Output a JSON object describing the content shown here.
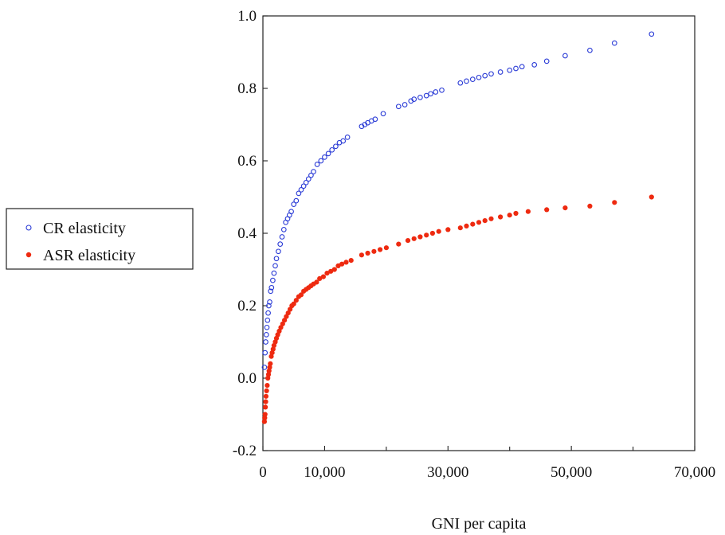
{
  "chart_data": {
    "type": "scatter",
    "title": "",
    "xlabel": "GNI per capita",
    "ylabel": "",
    "xlim": [
      0,
      70000
    ],
    "ylim": [
      -0.2,
      1.0
    ],
    "x_ticks": [
      0,
      10000,
      30000,
      50000,
      70000
    ],
    "x_tick_labels": [
      "0",
      "10,000",
      "30,000",
      "50,000",
      "70,000"
    ],
    "y_ticks": [
      -0.2,
      0.0,
      0.2,
      0.4,
      0.6,
      0.8,
      1.0
    ],
    "y_tick_labels": [
      "-0.2",
      "0.0",
      "0.2",
      "0.4",
      "0.6",
      "0.8",
      "1.0"
    ],
    "grid": false,
    "legend_placement": "left",
    "series": [
      {
        "name": "CR elasticity",
        "marker": "open-circle",
        "color": "#2a3bd6",
        "points": [
          [
            250,
            0.03
          ],
          [
            350,
            0.07
          ],
          [
            450,
            0.1
          ],
          [
            550,
            0.12
          ],
          [
            650,
            0.14
          ],
          [
            750,
            0.16
          ],
          [
            850,
            0.18
          ],
          [
            950,
            0.2
          ],
          [
            1100,
            0.21
          ],
          [
            1250,
            0.24
          ],
          [
            1400,
            0.25
          ],
          [
            1600,
            0.27
          ],
          [
            1800,
            0.29
          ],
          [
            2000,
            0.31
          ],
          [
            2200,
            0.33
          ],
          [
            2500,
            0.35
          ],
          [
            2800,
            0.37
          ],
          [
            3100,
            0.39
          ],
          [
            3400,
            0.41
          ],
          [
            3700,
            0.43
          ],
          [
            4000,
            0.44
          ],
          [
            4300,
            0.45
          ],
          [
            4600,
            0.46
          ],
          [
            5000,
            0.48
          ],
          [
            5400,
            0.49
          ],
          [
            5800,
            0.51
          ],
          [
            6200,
            0.52
          ],
          [
            6600,
            0.53
          ],
          [
            7000,
            0.54
          ],
          [
            7400,
            0.55
          ],
          [
            7800,
            0.56
          ],
          [
            8200,
            0.57
          ],
          [
            8800,
            0.59
          ],
          [
            9400,
            0.6
          ],
          [
            10000,
            0.61
          ],
          [
            10600,
            0.62
          ],
          [
            11200,
            0.63
          ],
          [
            11800,
            0.64
          ],
          [
            12400,
            0.65
          ],
          [
            13000,
            0.655
          ],
          [
            13700,
            0.665
          ],
          [
            16000,
            0.695
          ],
          [
            16500,
            0.7
          ],
          [
            17000,
            0.705
          ],
          [
            17600,
            0.71
          ],
          [
            18200,
            0.715
          ],
          [
            19500,
            0.73
          ],
          [
            22000,
            0.75
          ],
          [
            23000,
            0.755
          ],
          [
            24000,
            0.765
          ],
          [
            24500,
            0.77
          ],
          [
            25500,
            0.775
          ],
          [
            26500,
            0.78
          ],
          [
            27200,
            0.785
          ],
          [
            28000,
            0.79
          ],
          [
            29000,
            0.795
          ],
          [
            32000,
            0.815
          ],
          [
            33000,
            0.82
          ],
          [
            34000,
            0.825
          ],
          [
            35000,
            0.83
          ],
          [
            36000,
            0.835
          ],
          [
            37000,
            0.84
          ],
          [
            38500,
            0.845
          ],
          [
            40000,
            0.85
          ],
          [
            41000,
            0.855
          ],
          [
            42000,
            0.86
          ],
          [
            44000,
            0.865
          ],
          [
            46000,
            0.875
          ],
          [
            49000,
            0.89
          ],
          [
            53000,
            0.905
          ],
          [
            57000,
            0.925
          ],
          [
            63000,
            0.95
          ]
        ]
      },
      {
        "name": "ASR elasticity",
        "marker": "filled-circle",
        "color": "#ee2a10",
        "points": [
          [
            250,
            -0.12
          ],
          [
            300,
            -0.11
          ],
          [
            350,
            -0.1
          ],
          [
            400,
            -0.08
          ],
          [
            450,
            -0.065
          ],
          [
            500,
            -0.05
          ],
          [
            600,
            -0.035
          ],
          [
            700,
            -0.02
          ],
          [
            800,
            0.0
          ],
          [
            900,
            0.01
          ],
          [
            1000,
            0.02
          ],
          [
            1100,
            0.03
          ],
          [
            1200,
            0.04
          ],
          [
            1350,
            0.06
          ],
          [
            1500,
            0.07
          ],
          [
            1650,
            0.08
          ],
          [
            1800,
            0.09
          ],
          [
            2000,
            0.1
          ],
          [
            2200,
            0.11
          ],
          [
            2400,
            0.12
          ],
          [
            2650,
            0.13
          ],
          [
            2900,
            0.14
          ],
          [
            3200,
            0.15
          ],
          [
            3500,
            0.16
          ],
          [
            3800,
            0.17
          ],
          [
            4100,
            0.18
          ],
          [
            4400,
            0.19
          ],
          [
            4700,
            0.2
          ],
          [
            5000,
            0.205
          ],
          [
            5400,
            0.215
          ],
          [
            5800,
            0.225
          ],
          [
            6200,
            0.23
          ],
          [
            6600,
            0.24
          ],
          [
            7000,
            0.245
          ],
          [
            7400,
            0.25
          ],
          [
            7800,
            0.255
          ],
          [
            8200,
            0.26
          ],
          [
            8700,
            0.265
          ],
          [
            9200,
            0.275
          ],
          [
            9800,
            0.28
          ],
          [
            10400,
            0.29
          ],
          [
            11000,
            0.295
          ],
          [
            11600,
            0.3
          ],
          [
            12200,
            0.31
          ],
          [
            12800,
            0.315
          ],
          [
            13500,
            0.32
          ],
          [
            14300,
            0.325
          ],
          [
            16000,
            0.34
          ],
          [
            17000,
            0.345
          ],
          [
            18000,
            0.35
          ],
          [
            19000,
            0.355
          ],
          [
            20000,
            0.36
          ],
          [
            22000,
            0.37
          ],
          [
            23500,
            0.38
          ],
          [
            24500,
            0.385
          ],
          [
            25500,
            0.39
          ],
          [
            26500,
            0.395
          ],
          [
            27500,
            0.4
          ],
          [
            28500,
            0.405
          ],
          [
            30000,
            0.41
          ],
          [
            32000,
            0.415
          ],
          [
            33000,
            0.42
          ],
          [
            34000,
            0.425
          ],
          [
            35000,
            0.43
          ],
          [
            36000,
            0.435
          ],
          [
            37000,
            0.44
          ],
          [
            38500,
            0.445
          ],
          [
            40000,
            0.45
          ],
          [
            41000,
            0.455
          ],
          [
            43000,
            0.46
          ],
          [
            46000,
            0.465
          ],
          [
            49000,
            0.47
          ],
          [
            53000,
            0.475
          ],
          [
            57000,
            0.485
          ],
          [
            63000,
            0.5
          ]
        ]
      }
    ]
  }
}
